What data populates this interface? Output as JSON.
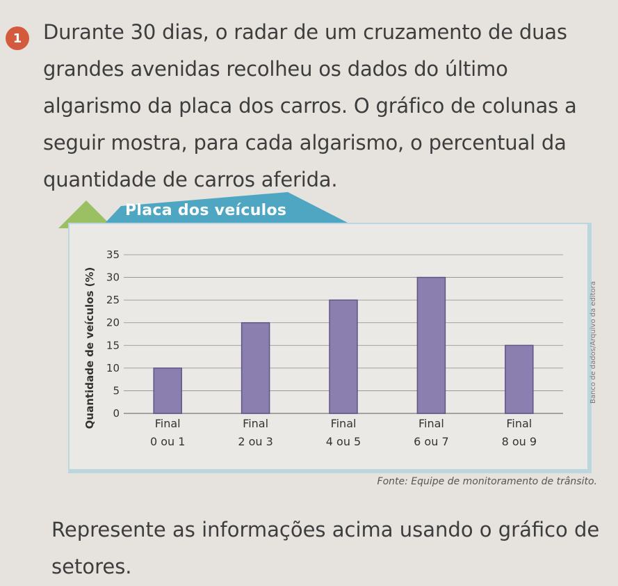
{
  "question": {
    "number": "1",
    "text": "Durante 30 dias, o radar de um cruzamento de duas grandes avenidas recolheu os dados do último algarismo da placa dos carros. O gráfico de colunas a seguir mostra, para cada algarismo, o percentual da quantidade de carros aferida."
  },
  "figure": {
    "title": "Placa dos veículos",
    "credit": "Banco de dados/Arquivo da editora",
    "source": "Fonte: Equipe de monitoramento de trânsito."
  },
  "task": {
    "text": "Represente as informações acima usando o gráfico de setores."
  },
  "colors": {
    "bar": "#8a7fae",
    "bar_stroke": "#5e5585",
    "title_band": "#4fa6c2",
    "title_accent": "#9bbf63",
    "grid": "#8a8a8a"
  },
  "chart_data": {
    "type": "bar",
    "title": "Placa dos veículos",
    "xlabel": "",
    "ylabel": "Quantidade de veículos (%)",
    "categories": [
      [
        "Final",
        "0 ou 1"
      ],
      [
        "Final",
        "2 ou 3"
      ],
      [
        "Final",
        "4 ou 5"
      ],
      [
        "Final",
        "6 ou 7"
      ],
      [
        "Final",
        "8 ou 9"
      ]
    ],
    "values": [
      10,
      20,
      25,
      30,
      15
    ],
    "yticks": [
      0,
      5,
      10,
      15,
      20,
      25,
      30,
      35
    ],
    "ylim": [
      0,
      35
    ],
    "grid": true
  }
}
